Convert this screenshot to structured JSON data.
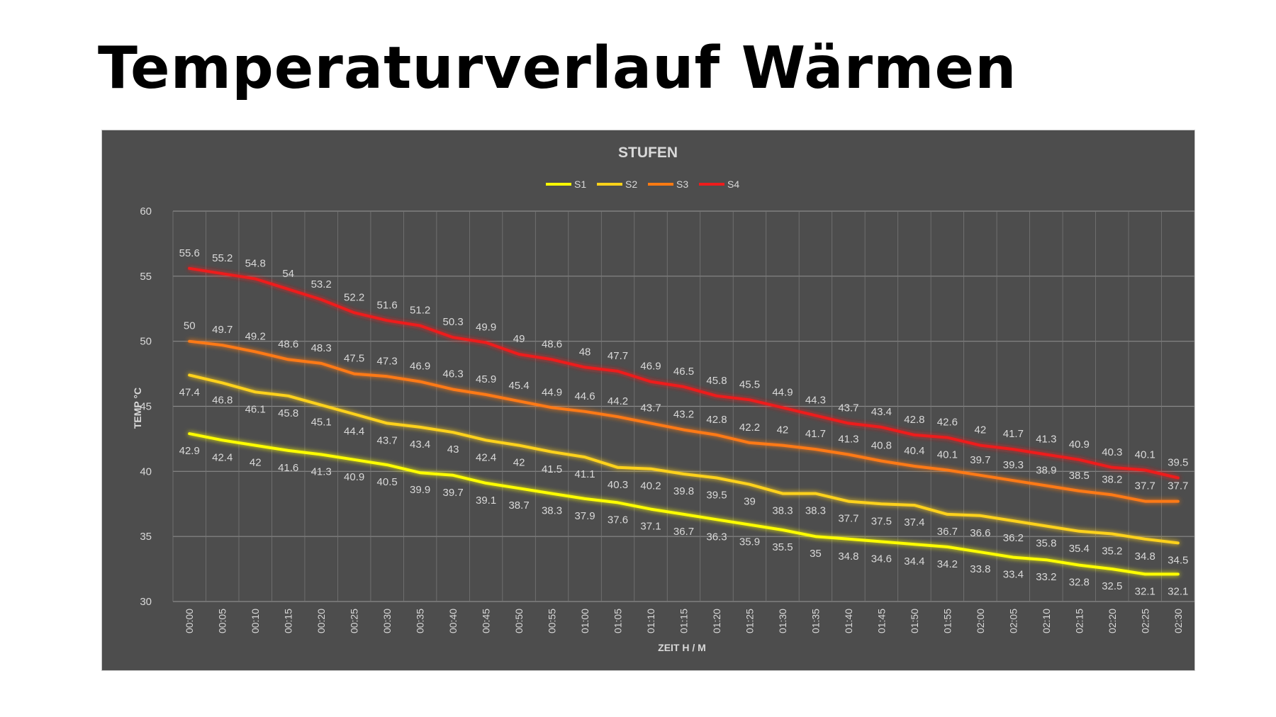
{
  "page": {
    "title": "Temperaturverlauf Wärmen"
  },
  "chart_data": {
    "type": "line",
    "title": "STUFEN",
    "xlabel": "ZEIT H / M",
    "ylabel": "TEMP °C",
    "ylim": [
      30,
      60
    ],
    "yticks": [
      30,
      35,
      40,
      45,
      50,
      55,
      60
    ],
    "grid": "horizontal and vertical",
    "legend_position": "top-center",
    "x": [
      "00:00",
      "00:05",
      "00:10",
      "00:15",
      "00:20",
      "00:25",
      "00:30",
      "00:35",
      "00:40",
      "00:45",
      "00:50",
      "00:55",
      "01:00",
      "01:05",
      "01:10",
      "01:15",
      "01:20",
      "01:25",
      "01:30",
      "01:35",
      "01:40",
      "01:45",
      "01:50",
      "01:55",
      "02:00",
      "02:05",
      "02:10",
      "02:15",
      "02:20",
      "02:25",
      "02:30"
    ],
    "series": [
      {
        "name": "S1",
        "color": "#ffff00",
        "label_position": "below",
        "values": [
          42.9,
          42.4,
          42,
          41.6,
          41.3,
          40.9,
          40.5,
          39.9,
          39.7,
          39.1,
          38.7,
          38.3,
          37.9,
          37.6,
          37.1,
          36.7,
          36.3,
          35.9,
          35.5,
          35,
          34.8,
          34.6,
          34.4,
          34.2,
          33.8,
          33.4,
          33.2,
          32.8,
          32.5,
          32.1,
          32.1
        ]
      },
      {
        "name": "S2",
        "color": "#ffd21a",
        "label_position": "below",
        "values": [
          47.4,
          46.8,
          46.1,
          45.8,
          45.1,
          44.4,
          43.7,
          43.4,
          43,
          42.4,
          42,
          41.5,
          41.1,
          40.3,
          40.2,
          39.8,
          39.5,
          39,
          38.3,
          38.3,
          37.7,
          37.5,
          37.4,
          36.7,
          36.6,
          36.2,
          35.8,
          35.4,
          35.2,
          34.8,
          34.5
        ]
      },
      {
        "name": "S3",
        "color": "#ff7a12",
        "label_position": "above",
        "values": [
          50,
          49.7,
          49.2,
          48.6,
          48.3,
          47.5,
          47.3,
          46.9,
          46.3,
          45.9,
          45.4,
          44.9,
          44.6,
          44.2,
          43.7,
          43.2,
          42.8,
          42.2,
          42,
          41.7,
          41.3,
          40.8,
          40.4,
          40.1,
          39.7,
          39.3,
          38.9,
          38.5,
          38.2,
          37.7,
          37.7
        ]
      },
      {
        "name": "S4",
        "color": "#ee1c1c",
        "label_position": "above",
        "values": [
          55.6,
          55.2,
          54.8,
          54,
          53.2,
          52.2,
          51.6,
          51.2,
          50.3,
          49.9,
          49,
          48.6,
          48,
          47.7,
          46.9,
          46.5,
          45.8,
          45.5,
          44.9,
          44.3,
          43.7,
          43.4,
          42.8,
          42.6,
          42,
          41.7,
          41.3,
          40.9,
          40.3,
          40.1,
          39.5
        ]
      }
    ],
    "colors": {
      "background": "#4d4d4d",
      "gridline": "#8a8a8a",
      "text": "#d9d9d9"
    }
  }
}
